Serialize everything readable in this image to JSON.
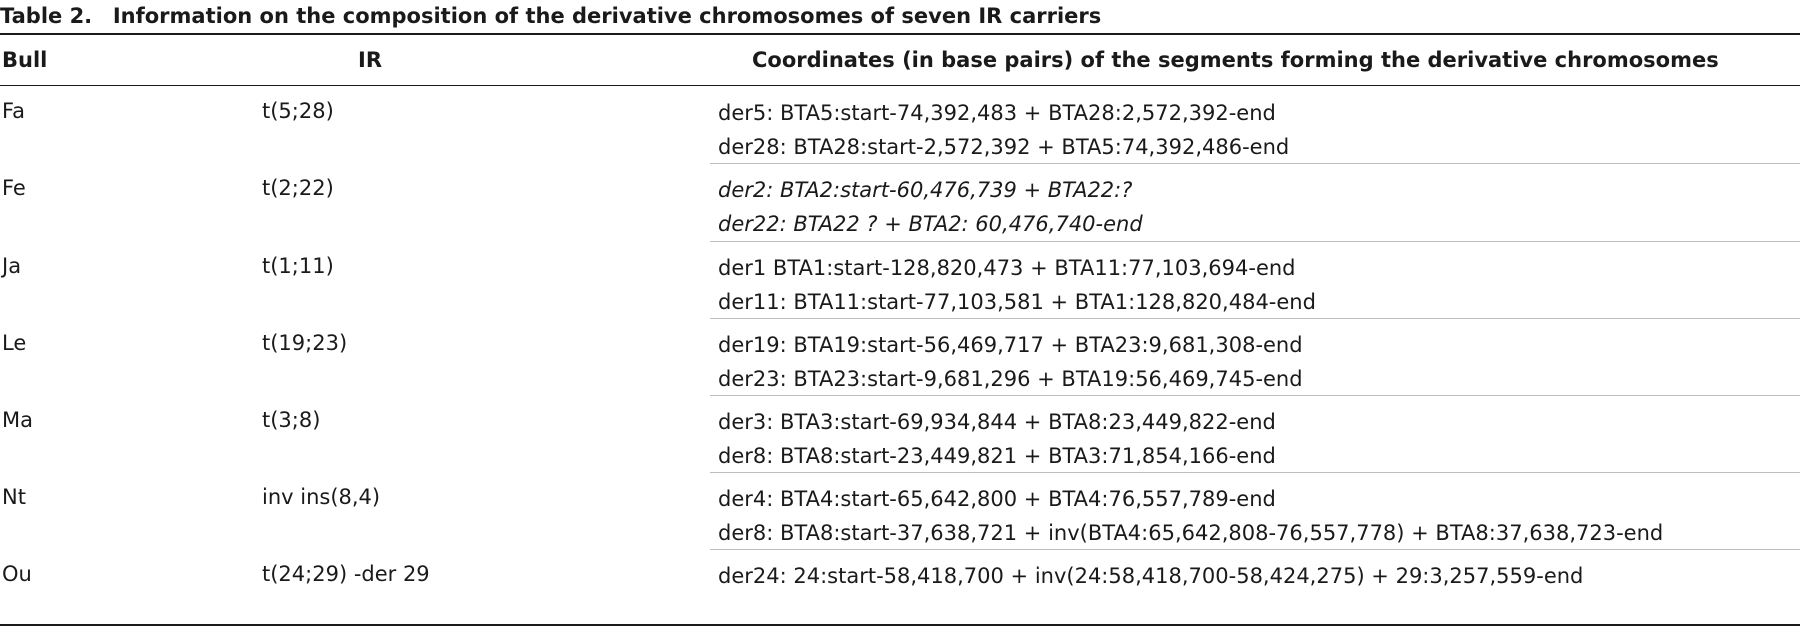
{
  "caption": {
    "label": "Table 2.",
    "title": "Information on the composition of the derivative chromosomes of seven IR carriers"
  },
  "headers": {
    "bull": "Bull",
    "ir": "IR",
    "coordinates": "Coordinates (in base pairs) of the segments forming the derivative chromosomes"
  },
  "rows": [
    {
      "bull": "Fa",
      "ir": "t(5;28)",
      "coordinates": [
        "der5: BTA5:start-74,392,483 + BTA28:2,572,392-end",
        "der28: BTA28:start-2,572,392 + BTA5:74,392,486-end"
      ],
      "italic": false
    },
    {
      "bull": "Fe",
      "ir": "t(2;22)",
      "coordinates": [
        "der2: BTA2:start-60,476,739 + BTA22:?",
        "der22: BTA22 ? + BTA2: 60,476,740-end"
      ],
      "italic": true
    },
    {
      "bull": "Ja",
      "ir": "t(1;11)",
      "coordinates": [
        "der1 BTA1:start-128,820,473 + BTA11:77,103,694-end",
        "der11: BTA11:start-77,103,581 + BTA1:128,820,484-end"
      ],
      "italic": false
    },
    {
      "bull": "Le",
      "ir": "t(19;23)",
      "coordinates": [
        "der19: BTA19:start-56,469,717 + BTA23:9,681,308-end",
        "der23: BTA23:start-9,681,296 + BTA19:56,469,745-end"
      ],
      "italic": false
    },
    {
      "bull": "Ma",
      "ir": "t(3;8)",
      "coordinates": [
        "der3: BTA3:start-69,934,844 + BTA8:23,449,822-end",
        "der8: BTA8:start-23,449,821 + BTA3:71,854,166-end"
      ],
      "italic": false
    },
    {
      "bull": "Nt",
      "ir": "inv ins(8,4)",
      "coordinates": [
        "der4: BTA4:start-65,642,800 + BTA4:76,557,789-end",
        "der8: BTA8:start-37,638,721 + inv(BTA4:65,642,808-76,557,778) + BTA8:37,638,723-end"
      ],
      "italic": false
    },
    {
      "bull": "Ou",
      "ir": "t(24;29) -der 29",
      "coordinates": [
        "der24: 24:start-58,418,700 + inv(24:58,418,700-58,424,275) + 29:3,257,559-end"
      ],
      "italic": false
    }
  ]
}
